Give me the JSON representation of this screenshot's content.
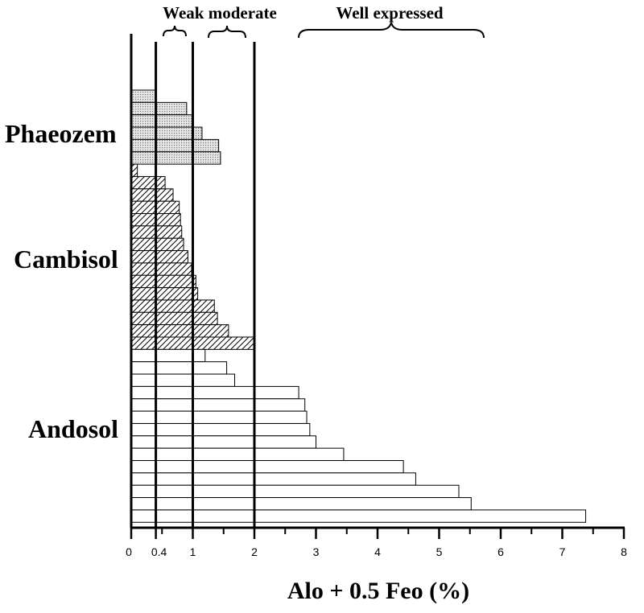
{
  "chart_data": {
    "type": "bar",
    "orientation": "horizontal",
    "title": "",
    "xlabel": "Alo + 0.5 Feo (%)",
    "ylabel": "",
    "xlim": [
      0,
      8
    ],
    "x_ticks": [
      {
        "value": 0,
        "label": "0"
      },
      {
        "value": 0.4,
        "label": "0.4"
      },
      {
        "value": 1,
        "label": "1"
      },
      {
        "value": 2,
        "label": "2"
      },
      {
        "value": 3,
        "label": "3"
      },
      {
        "value": 4,
        "label": "4"
      },
      {
        "value": 5,
        "label": "5"
      },
      {
        "value": 6,
        "label": "6"
      },
      {
        "value": 7,
        "label": "7"
      },
      {
        "value": 8,
        "label": "8"
      }
    ],
    "reference_lines": [
      0.4,
      1,
      2
    ],
    "grid": false,
    "legend": "none",
    "annotations": [
      "Weak moderate",
      "Well expressed"
    ],
    "series": [
      {
        "name": "Phaeozem",
        "fill": "dotted",
        "values": [
          0.4,
          0.9,
          1.0,
          1.15,
          1.42,
          1.45
        ]
      },
      {
        "name": "Cambisol",
        "fill": "hatched",
        "values": [
          0.1,
          0.55,
          0.68,
          0.78,
          0.8,
          0.82,
          0.85,
          0.92,
          0.98,
          1.05,
          1.08,
          1.35,
          1.4,
          1.58,
          2.0
        ]
      },
      {
        "name": "Andosol",
        "fill": "white",
        "values": [
          1.2,
          1.55,
          1.68,
          2.72,
          2.82,
          2.85,
          2.9,
          3.0,
          3.45,
          4.42,
          4.62,
          5.32,
          5.52,
          7.38
        ]
      }
    ]
  },
  "colors": {
    "axis": "#000000",
    "dotted_fill": "#e6e6e6",
    "bar_stroke": "#000000"
  }
}
